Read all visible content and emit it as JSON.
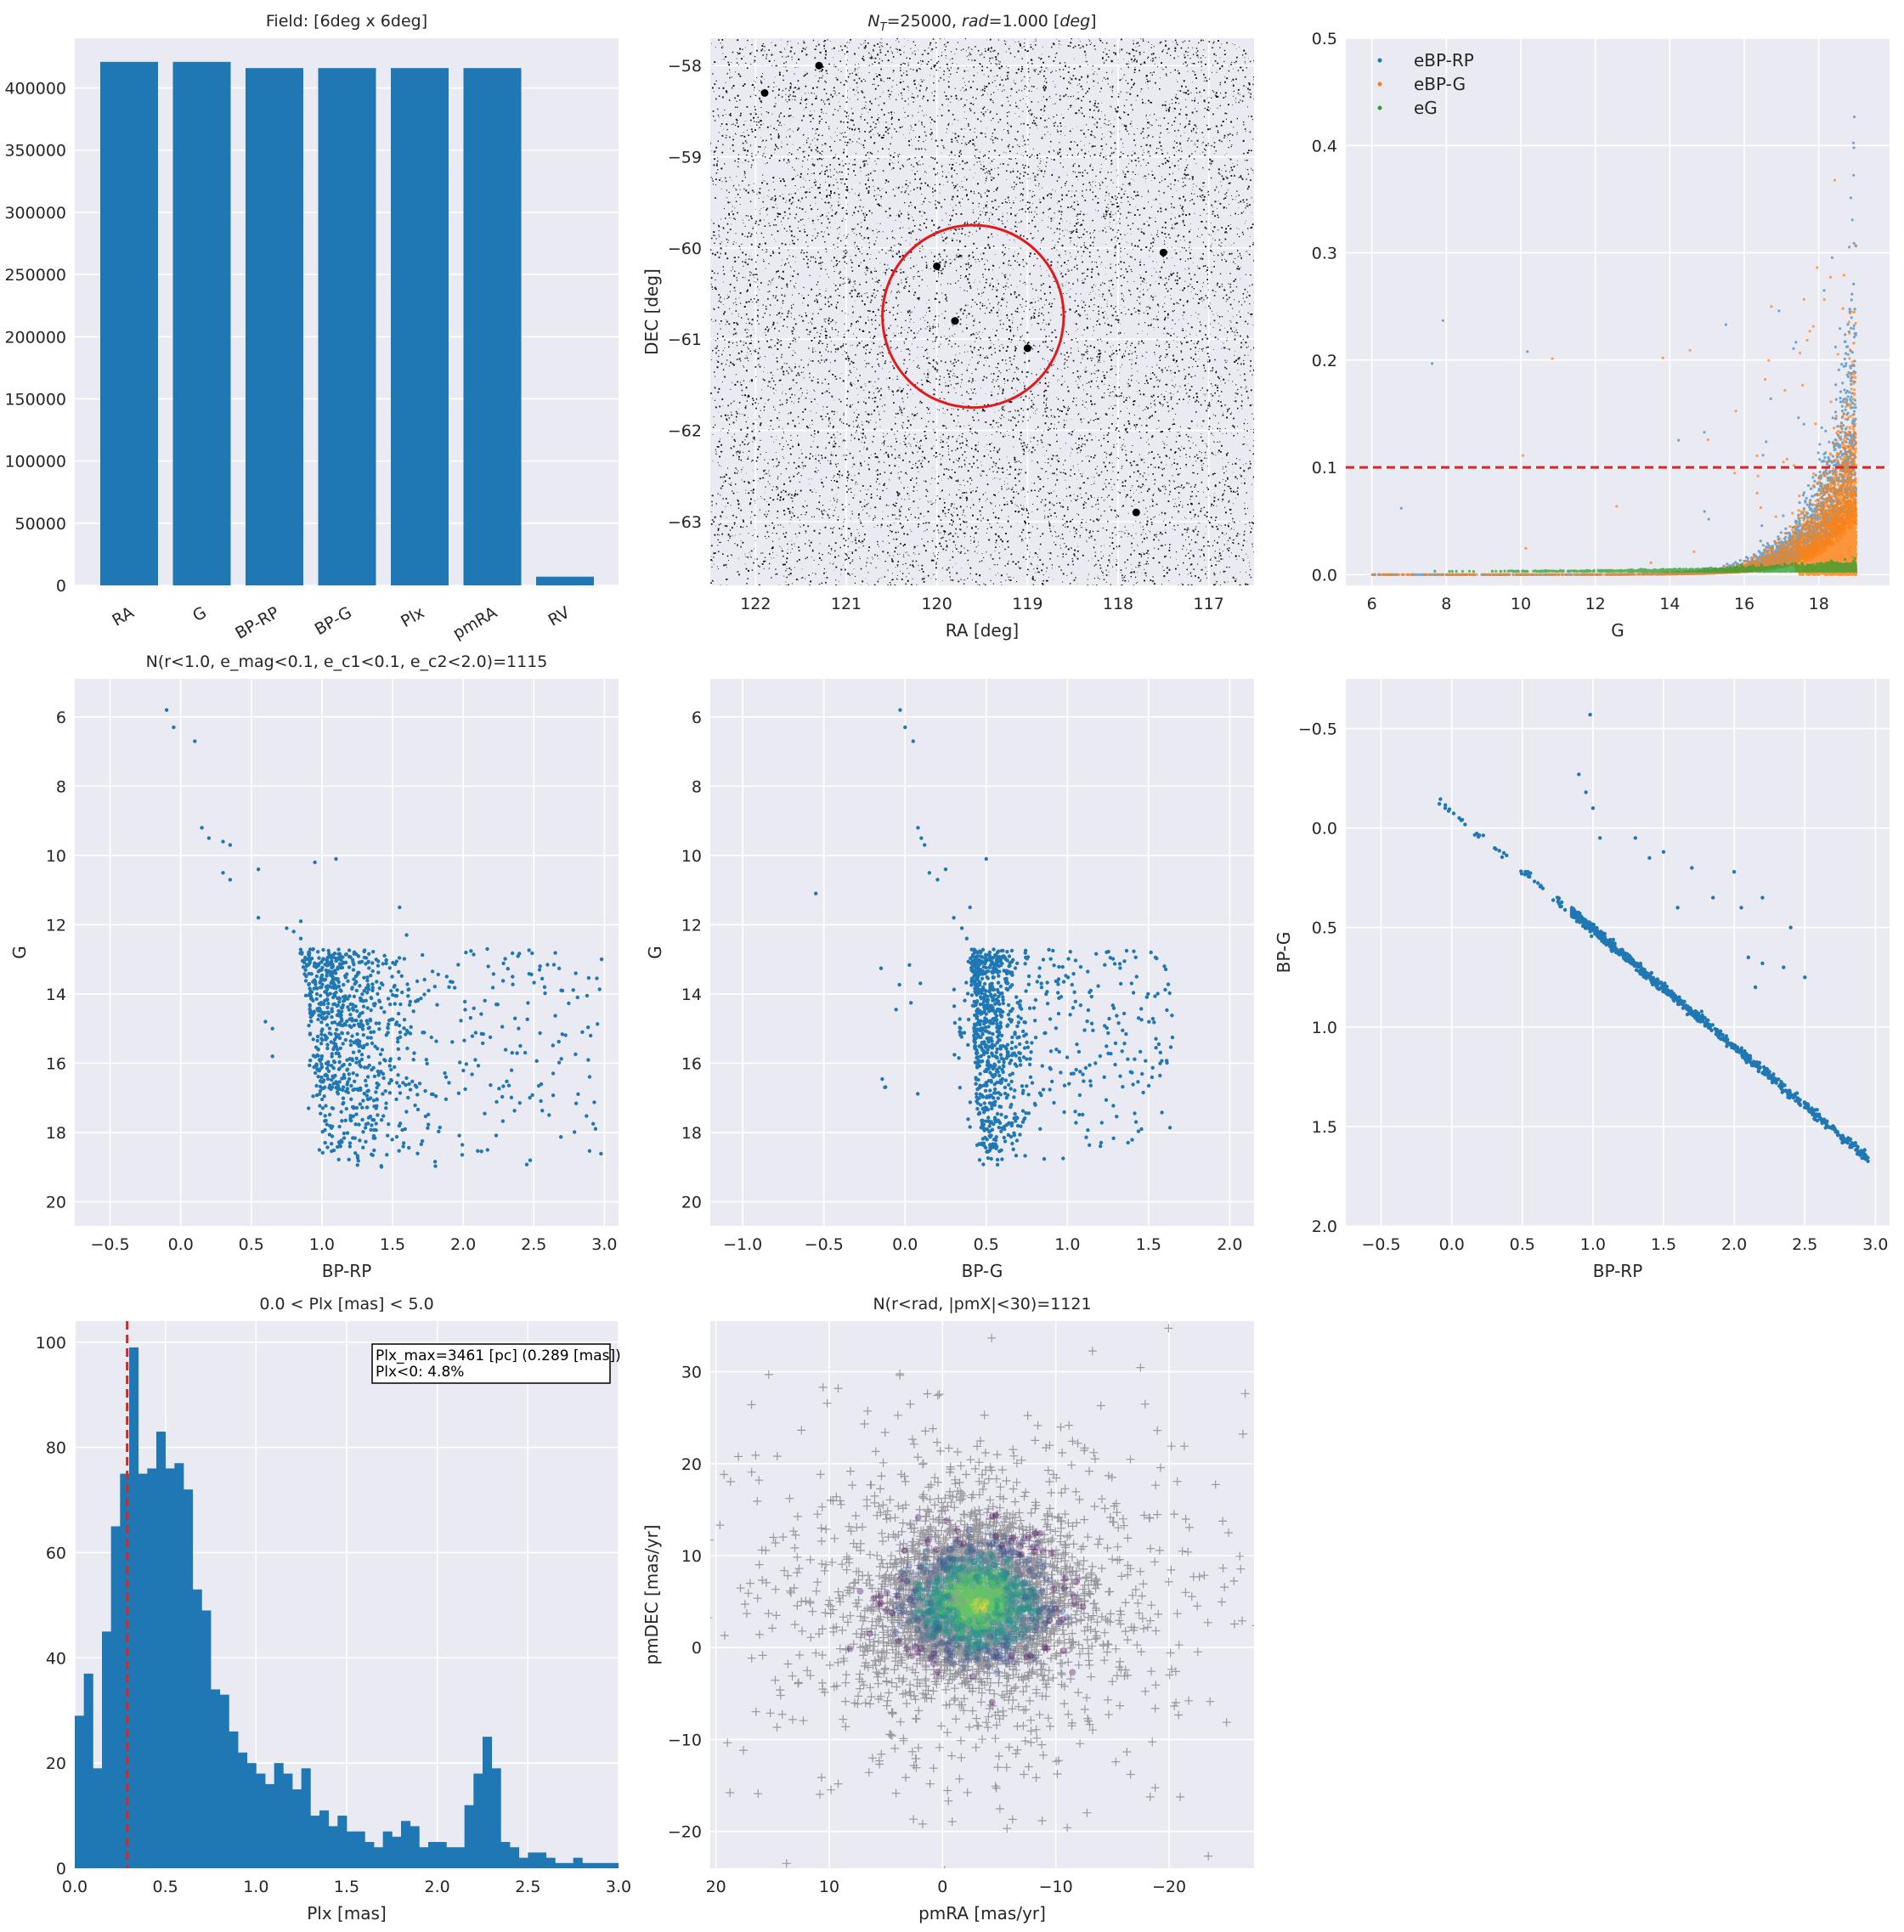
{
  "chart_data": [
    {
      "type": "bar",
      "title": "Field: [6deg x 6deg]",
      "xlabel": "",
      "ylabel": "",
      "categories": [
        "RA",
        "G",
        "BP-RP",
        "BP-G",
        "Plx",
        "pmRA",
        "RV"
      ],
      "values": [
        421000,
        421000,
        416000,
        416000,
        416000,
        416000,
        7000
      ],
      "ylim": [
        0,
        440000
      ],
      "yticks": [
        0,
        50000,
        100000,
        150000,
        200000,
        250000,
        300000,
        350000,
        400000
      ],
      "ytick_labels": [
        "0",
        "50000",
        "100000",
        "150000",
        "200000",
        "250000",
        "300000",
        "350000",
        "400000"
      ],
      "color": "#1f77b4"
    },
    {
      "type": "scatter",
      "title": "N_T = 25000, rad = 1.000 [deg]",
      "title_parts": [
        "N",
        "T",
        "=25000,  ",
        "rad",
        "=1.000 [",
        "deg",
        "]"
      ],
      "xlabel": "RA [deg]",
      "ylabel": "DEC [deg]",
      "xlim": [
        122.5,
        116.5
      ],
      "ylim": [
        -63.7,
        -57.7
      ],
      "xticks": [
        122,
        121,
        120,
        119,
        118,
        117
      ],
      "yticks": [
        -58,
        -59,
        -60,
        -61,
        -62,
        -63
      ],
      "xtick_labels": [
        "122",
        "121",
        "120",
        "119",
        "118",
        "117"
      ],
      "ytick_labels": [
        "−58",
        "−59",
        "−60",
        "−61",
        "−62",
        "−63"
      ],
      "n_points": 25000,
      "circle": {
        "center": [
          119.6,
          -60.75
        ],
        "radius": 1.0,
        "color": "#e31a1c"
      },
      "bright_stars": [
        [
          121.3,
          -58.0
        ],
        [
          120.0,
          -60.2
        ],
        [
          119.8,
          -60.8
        ],
        [
          119.8,
          -60.8
        ],
        [
          119.0,
          -61.1
        ],
        [
          117.5,
          -60.05
        ],
        [
          117.8,
          -62.9
        ],
        [
          121.9,
          -58.3
        ]
      ]
    },
    {
      "type": "scatter",
      "title": "",
      "xlabel": "G",
      "ylabel": "",
      "xlim": [
        5.3,
        19.9
      ],
      "ylim": [
        -0.01,
        0.5
      ],
      "xticks": [
        6,
        8,
        10,
        12,
        14,
        16,
        18
      ],
      "yticks": [
        0.0,
        0.1,
        0.2,
        0.3,
        0.4,
        0.5
      ],
      "xtick_labels": [
        "6",
        "8",
        "10",
        "12",
        "14",
        "16",
        "18"
      ],
      "ytick_labels": [
        "0.0",
        "0.1",
        "0.2",
        "0.3",
        "0.4",
        "0.5"
      ],
      "legend": [
        "eBP-RP",
        "eBP-G",
        "eG"
      ],
      "legend_position": "top-left",
      "series_colors": [
        "#1f77b4",
        "#ff7f0e",
        "#2ca02c"
      ],
      "hline": {
        "y": 0.1,
        "color": "#d62728",
        "style": "dashed"
      }
    },
    {
      "type": "scatter",
      "title": "N(r<1.0, e_mag<0.1, e_c1<0.1, e_c2<2.0)=1115",
      "xlabel": "BP-RP",
      "ylabel": "G",
      "xlim": [
        -0.75,
        3.1
      ],
      "ylim": [
        20.7,
        4.9
      ],
      "xticks": [
        -0.5,
        0.0,
        0.5,
        1.0,
        1.5,
        2.0,
        2.5,
        3.0
      ],
      "yticks": [
        6,
        8,
        10,
        12,
        14,
        16,
        18,
        20
      ],
      "xtick_labels": [
        "−0.5",
        "0.0",
        "0.5",
        "1.0",
        "1.5",
        "2.0",
        "2.5",
        "3.0"
      ],
      "ytick_labels": [
        "6",
        "8",
        "10",
        "12",
        "14",
        "16",
        "18",
        "20"
      ],
      "n_points": 1115,
      "bright_points": [
        [
          -0.1,
          5.8
        ],
        [
          -0.05,
          6.3
        ],
        [
          0.1,
          6.7
        ],
        [
          0.15,
          9.2
        ],
        [
          0.2,
          9.5
        ],
        [
          0.3,
          9.6
        ],
        [
          0.35,
          9.7
        ],
        [
          0.3,
          10.5
        ],
        [
          0.35,
          10.7
        ],
        [
          0.55,
          10.4
        ],
        [
          0.55,
          11.8
        ],
        [
          0.75,
          12.1
        ],
        [
          0.8,
          12.2
        ],
        [
          0.85,
          12.4
        ],
        [
          0.85,
          11.9
        ],
        [
          0.95,
          10.2
        ],
        [
          1.1,
          10.1
        ],
        [
          1.55,
          11.5
        ],
        [
          1.6,
          12.3
        ],
        [
          1.9,
          13.8
        ],
        [
          0.6,
          14.8
        ],
        [
          0.65,
          15.0
        ],
        [
          0.65,
          15.8
        ]
      ]
    },
    {
      "type": "scatter",
      "title": "",
      "xlabel": "BP-G",
      "ylabel": "G",
      "xlim": [
        -1.2,
        2.15
      ],
      "ylim": [
        20.7,
        4.9
      ],
      "xticks": [
        -1.0,
        -0.5,
        0.0,
        0.5,
        1.0,
        1.5,
        2.0
      ],
      "yticks": [
        6,
        8,
        10,
        12,
        14,
        16,
        18,
        20
      ],
      "xtick_labels": [
        "−1.0",
        "−0.5",
        "0.0",
        "0.5",
        "1.0",
        "1.5",
        "2.0"
      ],
      "ytick_labels": [
        "6",
        "8",
        "10",
        "12",
        "14",
        "16",
        "18",
        "20"
      ],
      "n_points": 1115,
      "bright_points": [
        [
          -0.03,
          5.8
        ],
        [
          0.0,
          6.3
        ],
        [
          0.05,
          6.7
        ],
        [
          0.08,
          9.2
        ],
        [
          0.1,
          9.5
        ],
        [
          0.12,
          9.7
        ],
        [
          0.15,
          10.5
        ],
        [
          0.2,
          10.7
        ],
        [
          0.25,
          10.4
        ],
        [
          -0.55,
          11.1
        ],
        [
          0.3,
          11.8
        ],
        [
          0.35,
          12.1
        ],
        [
          0.38,
          12.4
        ],
        [
          0.4,
          11.5
        ],
        [
          0.5,
          10.1
        ]
      ]
    },
    {
      "type": "scatter",
      "title": "",
      "xlabel": "BP-RP",
      "ylabel": "BP-G",
      "xlim": [
        -0.75,
        3.1
      ],
      "ylim": [
        2.0,
        -0.75
      ],
      "xticks": [
        -0.5,
        0.0,
        0.5,
        1.0,
        1.5,
        2.0,
        2.5,
        3.0
      ],
      "yticks": [
        -0.5,
        0.0,
        0.5,
        1.0,
        1.5,
        2.0
      ],
      "xtick_labels": [
        "−0.5",
        "0.0",
        "0.5",
        "1.0",
        "1.5",
        "2.0",
        "2.5",
        "3.0"
      ],
      "ytick_labels": [
        "−0.5",
        "0.0",
        "0.5",
        "1.0",
        "1.5",
        "2.0"
      ],
      "n_points": 1115,
      "outliers": [
        [
          0.98,
          -0.57
        ],
        [
          0.9,
          -0.27
        ],
        [
          0.95,
          -0.18
        ],
        [
          1.0,
          -0.1
        ],
        [
          1.05,
          0.05
        ],
        [
          1.3,
          0.05
        ],
        [
          1.5,
          0.12
        ],
        [
          1.7,
          0.2
        ],
        [
          2.0,
          0.22
        ],
        [
          1.85,
          0.35
        ],
        [
          2.05,
          0.4
        ],
        [
          2.2,
          0.35
        ],
        [
          2.4,
          0.5
        ],
        [
          2.1,
          0.65
        ],
        [
          2.2,
          0.68
        ],
        [
          2.15,
          0.8
        ],
        [
          2.35,
          0.7
        ],
        [
          2.5,
          0.75
        ],
        [
          1.4,
          0.15
        ],
        [
          1.6,
          0.4
        ]
      ]
    },
    {
      "type": "bar",
      "title": "0.0 < Plx [mas] < 5.0",
      "xlabel": "Plx [mas]",
      "ylabel": "",
      "bin_width": 0.05,
      "x_start": 0.0,
      "values": [
        29,
        37,
        19,
        45,
        65,
        75,
        99,
        75,
        76,
        83,
        76,
        77,
        72,
        53,
        49,
        34,
        33,
        26,
        22,
        20,
        18,
        16,
        20,
        18,
        15,
        19,
        10,
        11,
        8,
        10,
        7,
        7,
        5,
        4,
        7,
        6,
        9,
        8,
        4,
        5,
        5,
        4,
        4,
        12,
        18,
        25,
        19,
        5,
        4,
        2,
        3,
        3,
        2,
        1,
        1,
        2,
        1,
        1,
        1,
        1
      ],
      "xlim": [
        0.0,
        3.0
      ],
      "ylim": [
        0,
        104
      ],
      "xticks": [
        0.0,
        0.5,
        1.0,
        1.5,
        2.0,
        2.5,
        3.0
      ],
      "yticks": [
        0,
        20,
        40,
        60,
        80,
        100
      ],
      "xtick_labels": [
        "0.0",
        "0.5",
        "1.0",
        "1.5",
        "2.0",
        "2.5",
        "3.0"
      ],
      "ytick_labels": [
        "0",
        "20",
        "40",
        "60",
        "80",
        "100"
      ],
      "vline": {
        "x": 0.289,
        "color": "#d62728",
        "style": "dashed"
      },
      "annotation": [
        "Plx_max=3461 [pc] (0.289 [mas])",
        "Plx<0: 4.8%"
      ]
    },
    {
      "type": "scatter",
      "title": "N(r<rad, |pmX|<30)=1121",
      "xlabel": "pmRA [mas/yr]",
      "ylabel": "pmDEC [mas/yr]",
      "xlim": [
        20.5,
        -27.5
      ],
      "ylim": [
        -24,
        35.5
      ],
      "xticks": [
        20,
        10,
        0,
        -10,
        -20
      ],
      "yticks": [
        -20,
        -10,
        0,
        10,
        20,
        30
      ],
      "xtick_labels": [
        "20",
        "10",
        "0",
        "−10",
        "−20"
      ],
      "ytick_labels": [
        "−20",
        "−10",
        "0",
        "10",
        "20",
        "30"
      ],
      "n_points": 1121,
      "center": [
        -3,
        5
      ]
    }
  ]
}
